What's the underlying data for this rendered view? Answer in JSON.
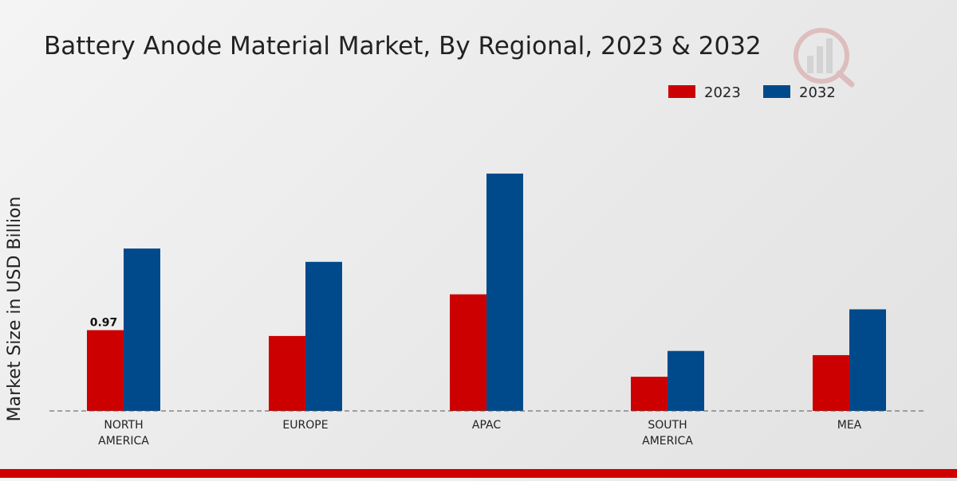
{
  "chart_data": {
    "type": "bar",
    "title": "Battery Anode Material Market, By Regional, 2023 & 2032",
    "xlabel": "",
    "ylabel": "Market Size in USD Billion",
    "categories": [
      "NORTH\nAMERICA",
      "EUROPE",
      "APAC",
      "SOUTH\nAMERICA",
      "MEA"
    ],
    "series": [
      {
        "name": "2023",
        "color": "#cc0000",
        "values": [
          0.97,
          0.9,
          1.4,
          0.41,
          0.67
        ]
      },
      {
        "name": "2032",
        "color": "#004a8c",
        "values": [
          1.95,
          1.79,
          2.85,
          0.72,
          1.22
        ]
      }
    ],
    "data_labels": [
      {
        "series": 0,
        "index": 0,
        "text": "0.97"
      }
    ],
    "ylim": [
      0,
      3.5
    ],
    "grid": false,
    "legend_position": "top-right"
  }
}
